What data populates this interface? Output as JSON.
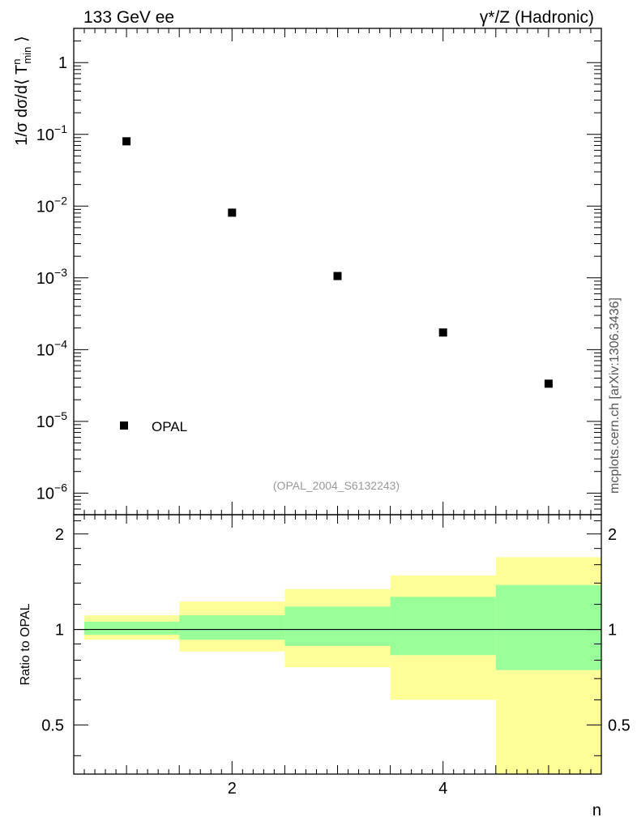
{
  "header": {
    "left_title": "133 GeV ee",
    "right_title": "γ*/Z (Hadronic)"
  },
  "watermark": "mcplots.cern.ch [arXiv:1306.3436]",
  "analysis_id": "(OPAL_2004_S6132243)",
  "chart_data": [
    {
      "type": "scatter",
      "yscale": "log",
      "ylabel": "1/σ dσ/d⟨ T^n_min ⟩",
      "xlim": [
        0.5,
        5.5
      ],
      "ylim": [
        5e-07,
        3.0
      ],
      "yticks": [
        {
          "value": 1e-06,
          "label": "10",
          "exp": "−6"
        },
        {
          "value": 1e-05,
          "label": "10",
          "exp": "−5"
        },
        {
          "value": 0.0001,
          "label": "10",
          "exp": "−4"
        },
        {
          "value": 0.001,
          "label": "10",
          "exp": "−3"
        },
        {
          "value": 0.01,
          "label": "10",
          "exp": "−2"
        },
        {
          "value": 0.1,
          "label": "10",
          "exp": "−1"
        },
        {
          "value": 1,
          "label": "1",
          "exp": ""
        }
      ],
      "legend": {
        "entries": [
          "OPAL"
        ],
        "placement": "bottom-left"
      },
      "series": [
        {
          "name": "OPAL",
          "marker": "square",
          "color": "#000000",
          "x": [
            1,
            2,
            3,
            4,
            5
          ],
          "y": [
            0.08,
            0.0081,
            0.00106,
            0.000173,
            3.35e-05
          ]
        }
      ]
    },
    {
      "type": "area",
      "ylabel": "Ratio to OPAL",
      "xlabel": "n",
      "xlim": [
        0.5,
        5.5
      ],
      "ylim": [
        0.35,
        2.3
      ],
      "xticks": [
        2,
        4
      ],
      "yticks": [
        0.5,
        1,
        2
      ],
      "reference_line": 1,
      "bins": [
        {
          "lo": 0.6,
          "hi": 1.5,
          "inner": [
            0.962,
            1.058
          ],
          "outer": [
            0.928,
            1.108
          ]
        },
        {
          "lo": 1.5,
          "hi": 2.5,
          "inner": [
            0.928,
            1.108
          ],
          "outer": [
            0.852,
            1.225
          ]
        },
        {
          "lo": 2.5,
          "hi": 3.5,
          "inner": [
            0.887,
            1.18
          ],
          "outer": [
            0.76,
            1.34
          ]
        },
        {
          "lo": 3.5,
          "hi": 4.5,
          "inner": [
            0.83,
            1.267
          ],
          "outer": [
            0.6,
            1.48
          ]
        },
        {
          "lo": 4.5,
          "hi": 5.5,
          "inner": [
            0.745,
            1.38
          ],
          "outer": [
            0.35,
            1.69
          ]
        }
      ],
      "colors": {
        "inner": "#99ff99",
        "outer": "#ffff99"
      }
    }
  ]
}
